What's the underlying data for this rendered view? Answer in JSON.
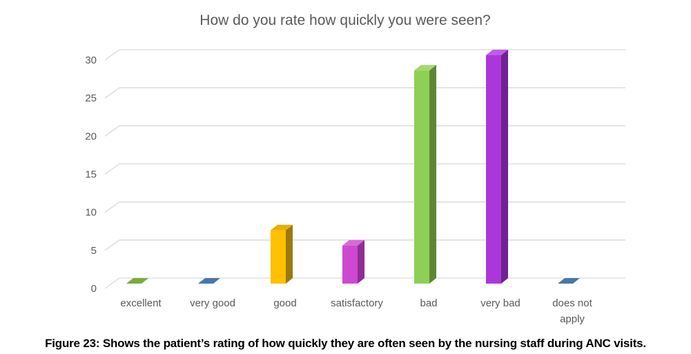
{
  "chart_data": {
    "type": "bar",
    "style": "3d-column",
    "title": "How do you rate how quickly you were seen?",
    "categories": [
      "excellent",
      "very good",
      "good",
      "satisfactory",
      "bad",
      "very bad",
      "does not apply"
    ],
    "category_lines": [
      [
        "excellent"
      ],
      [
        "very good"
      ],
      [
        "good"
      ],
      [
        "satisfactory"
      ],
      [
        "bad"
      ],
      [
        "very bad"
      ],
      [
        "does not",
        "apply"
      ]
    ],
    "values": [
      0,
      0,
      7,
      5,
      28,
      30,
      0
    ],
    "ylabel": "",
    "xlabel": "",
    "ylim": [
      0,
      30
    ],
    "yticks": [
      0,
      5,
      10,
      15,
      20,
      25,
      30
    ],
    "grid": true,
    "legend": false,
    "title_color": "#595959",
    "axis_label_color": "#595959",
    "gridline_color": "#d9d9d9",
    "bar_colors": [
      {
        "front": "#79AB3E",
        "top": "#79AB3E",
        "side": "#5F8733"
      },
      {
        "front": "#4A7BAE",
        "top": "#4878A8",
        "side": "#38618C"
      },
      {
        "front": "#FFC000",
        "top": "#E9AE06",
        "side": "#9C7A08"
      },
      {
        "front": "#CE49D0",
        "top": "#DA67DC",
        "side": "#8F2E93"
      },
      {
        "front": "#8ED054",
        "top": "#A3D96E",
        "side": "#5F8733"
      },
      {
        "front": "#AB37DC",
        "top": "#BF5BE8",
        "side": "#6E2391"
      },
      {
        "front": "#4A7BAE",
        "top": "#4878A8",
        "side": "#38618C"
      }
    ]
  },
  "caption": {
    "label": "Figure 23:",
    "text": "Shows the patient’s rating of how quickly they are often seen by the nursing staff during ANC visits."
  }
}
